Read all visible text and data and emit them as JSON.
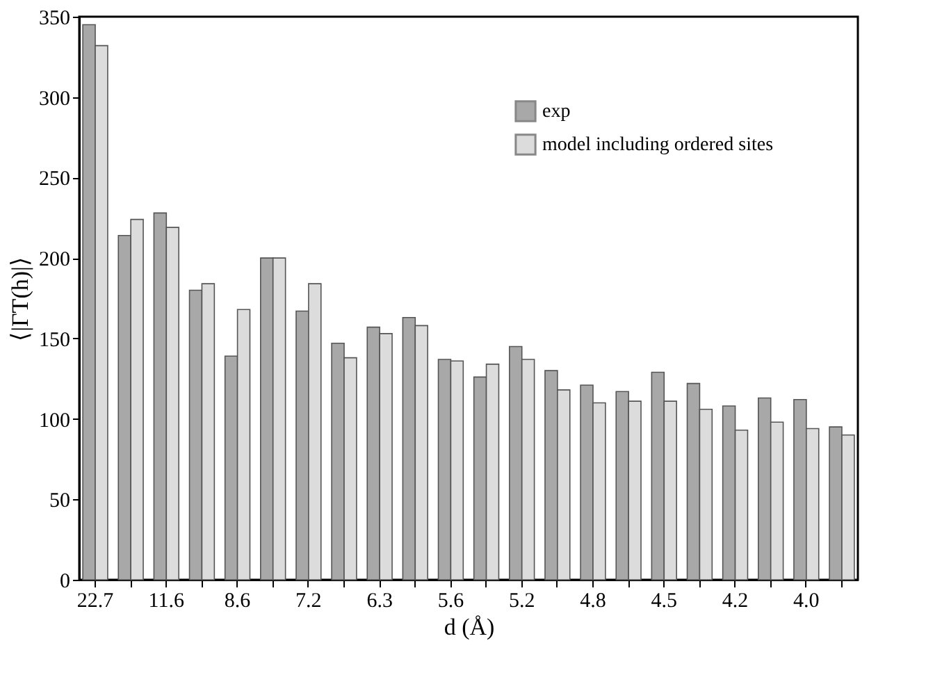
{
  "chart_data": {
    "type": "bar",
    "xlabel": "d (Å)",
    "ylabel": "⟨|ΓT(h)|⟩",
    "categories": [
      "22.7",
      null,
      "11.6",
      null,
      "8.6",
      null,
      "7.2",
      null,
      "6.3",
      null,
      "5.6",
      null,
      "5.2",
      null,
      "4.8",
      null,
      "4.5",
      null,
      "4.2",
      null,
      "4.0",
      null
    ],
    "series": [
      {
        "name": "exp",
        "color": "#a8a8a8",
        "values": [
          345,
          214,
          228,
          180,
          139,
          200,
          167,
          147,
          157,
          163,
          137,
          126,
          145,
          130,
          121,
          117,
          129,
          122,
          108,
          113,
          112,
          95
        ]
      },
      {
        "name": "model including ordered sites",
        "color": "#dcdcdc",
        "values": [
          332,
          224,
          219,
          184,
          168,
          200,
          184,
          138,
          153,
          158,
          136,
          134,
          137,
          118,
          110,
          111,
          111,
          106,
          93,
          98,
          94,
          90
        ]
      }
    ],
    "ylim": [
      0,
      350
    ],
    "yticks": [
      0,
      50,
      100,
      150,
      200,
      250,
      300,
      350
    ],
    "legend": "top right",
    "grid": false
  }
}
